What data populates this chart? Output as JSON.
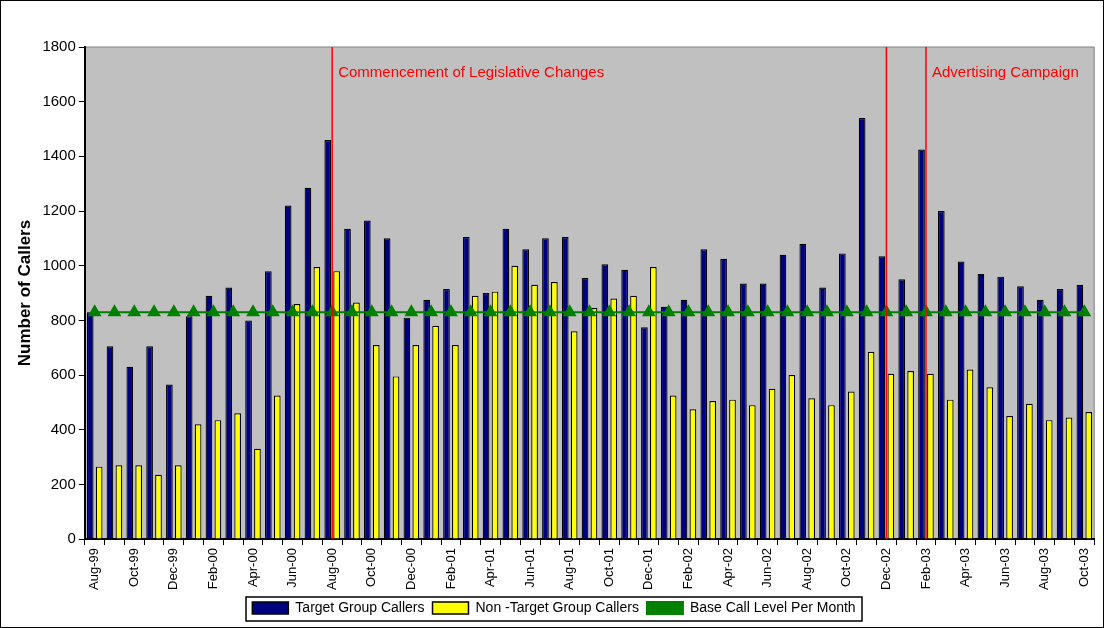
{
  "chart_data": {
    "type": "bar",
    "ylabel": "Number of Callers",
    "categories": [
      "Aug-99",
      null,
      "Oct-99",
      null,
      "Dec-99",
      null,
      "Feb-00",
      null,
      "Apr-00",
      null,
      "Jun-00",
      null,
      "Aug-00",
      null,
      "Oct-00",
      null,
      "Dec-00",
      null,
      "Feb-01",
      null,
      "Apr-01",
      null,
      "Jun-01",
      null,
      "Aug-01",
      null,
      "Oct-01",
      null,
      "Dec-01",
      null,
      "Feb-02",
      null,
      "Apr-02",
      null,
      "Jun-02",
      null,
      "Aug-02",
      null,
      "Oct-02",
      null,
      "Dec-02",
      null,
      "Feb-03",
      null,
      "Apr-03",
      null,
      "Jun-03",
      null,
      "Aug-03",
      null,
      "Oct-03"
    ],
    "series": [
      {
        "name": "Target Group Callers",
        "color": "#000080",
        "values": [
          830,
          705,
          630,
          705,
          565,
          815,
          890,
          920,
          800,
          980,
          1220,
          1285,
          1460,
          1135,
          1165,
          1100,
          810,
          875,
          915,
          1105,
          900,
          1135,
          1060,
          1100,
          1105,
          955,
          1005,
          985,
          775,
          850,
          875,
          1060,
          1025,
          935,
          935,
          1040,
          1080,
          920,
          1045,
          1540,
          1035,
          950,
          1425,
          1200,
          1015,
          970,
          960,
          925,
          875,
          915,
          930
        ]
      },
      {
        "name": "Non -Target Group Callers",
        "color": "#ffff00",
        "values": [
          265,
          270,
          270,
          235,
          270,
          420,
          435,
          460,
          330,
          525,
          860,
          995,
          980,
          865,
          710,
          595,
          710,
          780,
          710,
          890,
          905,
          1000,
          930,
          940,
          760,
          845,
          880,
          890,
          995,
          525,
          475,
          505,
          510,
          490,
          550,
          600,
          515,
          490,
          540,
          685,
          605,
          615,
          605,
          510,
          620,
          555,
          450,
          495,
          435,
          445,
          465
        ]
      },
      {
        "name": "Base Call Level Per Month",
        "type": "line",
        "color": "#008000",
        "values": [
          830,
          830,
          830,
          830,
          830,
          830,
          830,
          830,
          830,
          830,
          830,
          830,
          830,
          830,
          830,
          830,
          830,
          830,
          830,
          830,
          830,
          830,
          830,
          830,
          830,
          830,
          830,
          830,
          830,
          830,
          830,
          830,
          830,
          830,
          830,
          830,
          830,
          830,
          830,
          830,
          830,
          830,
          830,
          830,
          830,
          830,
          830,
          830,
          830,
          830,
          830
        ]
      }
    ],
    "ylim": [
      0,
      1800
    ],
    "yticks": [
      0,
      200,
      400,
      600,
      800,
      1000,
      1200,
      1400,
      1600,
      1800
    ],
    "ref_lines": [
      {
        "axis": "x",
        "value": "Aug-00",
        "label": "Commencement of Legislative Changes",
        "color": "#ff0000"
      },
      {
        "axis": "x",
        "value": "Dec-02",
        "label": null,
        "color": "#ff0000"
      },
      {
        "axis": "x",
        "value": "Feb-03",
        "label": "Advertising Campaign",
        "color": "#ff0000"
      }
    ],
    "legend": "bottom",
    "marker": "triangle",
    "grid": false
  }
}
